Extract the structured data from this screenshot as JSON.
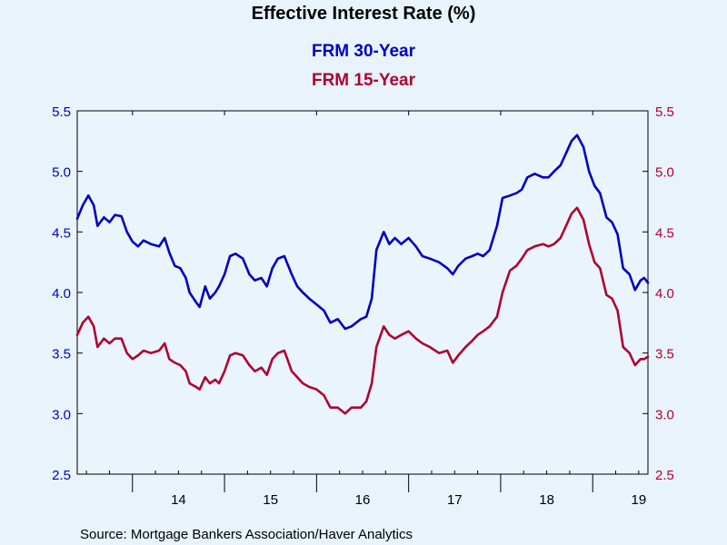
{
  "chart_data": {
    "type": "line",
    "title": "Effective Interest Rate (%)",
    "source": "Source:  Mortgage Bankers Association/Haver Analytics",
    "x_tick_labels": [
      "14",
      "15",
      "16",
      "17",
      "18",
      "19"
    ],
    "y_left": {
      "ylim": [
        2.5,
        5.5
      ],
      "ticks": [
        "2.5",
        "3.0",
        "3.5",
        "4.0",
        "4.5",
        "5.0",
        "5.5"
      ]
    },
    "y_right": {
      "ylim": [
        2.5,
        5.5
      ],
      "ticks": [
        "2.5",
        "3.0",
        "3.5",
        "4.0",
        "4.5",
        "5.0",
        "5.5"
      ]
    },
    "xlim": [
      2013.4,
      2019.6
    ],
    "grid": false,
    "legend": "top-center",
    "series": [
      {
        "name": "FRM 30-Year",
        "color": "#0000c0",
        "axis": "left",
        "points": [
          [
            2013.4,
            4.61
          ],
          [
            2013.46,
            4.72
          ],
          [
            2013.52,
            4.8
          ],
          [
            2013.58,
            4.72
          ],
          [
            2013.62,
            4.55
          ],
          [
            2013.69,
            4.62
          ],
          [
            2013.75,
            4.58
          ],
          [
            2013.81,
            4.64
          ],
          [
            2013.88,
            4.63
          ],
          [
            2013.94,
            4.5
          ],
          [
            2014.0,
            4.42
          ],
          [
            2014.06,
            4.38
          ],
          [
            2014.12,
            4.43
          ],
          [
            2014.2,
            4.4
          ],
          [
            2014.29,
            4.38
          ],
          [
            2014.35,
            4.45
          ],
          [
            2014.4,
            4.33
          ],
          [
            2014.46,
            4.22
          ],
          [
            2014.52,
            4.2
          ],
          [
            2014.58,
            4.12
          ],
          [
            2014.62,
            4.0
          ],
          [
            2014.69,
            3.92
          ],
          [
            2014.73,
            3.88
          ],
          [
            2014.79,
            4.05
          ],
          [
            2014.84,
            3.95
          ],
          [
            2014.9,
            4.0
          ],
          [
            2014.94,
            4.05
          ],
          [
            2015.0,
            4.15
          ],
          [
            2015.06,
            4.3
          ],
          [
            2015.12,
            4.32
          ],
          [
            2015.2,
            4.28
          ],
          [
            2015.27,
            4.15
          ],
          [
            2015.33,
            4.1
          ],
          [
            2015.4,
            4.12
          ],
          [
            2015.46,
            4.05
          ],
          [
            2015.52,
            4.2
          ],
          [
            2015.58,
            4.28
          ],
          [
            2015.65,
            4.3
          ],
          [
            2015.73,
            4.15
          ],
          [
            2015.79,
            4.05
          ],
          [
            2015.85,
            4.0
          ],
          [
            2015.92,
            3.95
          ],
          [
            2016.0,
            3.9
          ],
          [
            2016.08,
            3.85
          ],
          [
            2016.15,
            3.75
          ],
          [
            2016.23,
            3.78
          ],
          [
            2016.31,
            3.7
          ],
          [
            2016.38,
            3.72
          ],
          [
            2016.48,
            3.78
          ],
          [
            2016.54,
            3.8
          ],
          [
            2016.6,
            3.95
          ],
          [
            2016.65,
            4.35
          ],
          [
            2016.73,
            4.5
          ],
          [
            2016.79,
            4.4
          ],
          [
            2016.85,
            4.45
          ],
          [
            2016.92,
            4.4
          ],
          [
            2017.0,
            4.45
          ],
          [
            2017.08,
            4.38
          ],
          [
            2017.15,
            4.3
          ],
          [
            2017.23,
            4.28
          ],
          [
            2017.33,
            4.25
          ],
          [
            2017.42,
            4.2
          ],
          [
            2017.48,
            4.15
          ],
          [
            2017.54,
            4.22
          ],
          [
            2017.62,
            4.28
          ],
          [
            2017.69,
            4.3
          ],
          [
            2017.75,
            4.32
          ],
          [
            2017.81,
            4.3
          ],
          [
            2017.88,
            4.35
          ],
          [
            2017.96,
            4.55
          ],
          [
            2018.02,
            4.78
          ],
          [
            2018.1,
            4.8
          ],
          [
            2018.17,
            4.82
          ],
          [
            2018.23,
            4.85
          ],
          [
            2018.29,
            4.95
          ],
          [
            2018.37,
            4.98
          ],
          [
            2018.46,
            4.95
          ],
          [
            2018.52,
            4.95
          ],
          [
            2018.58,
            5.0
          ],
          [
            2018.65,
            5.05
          ],
          [
            2018.71,
            5.15
          ],
          [
            2018.77,
            5.25
          ],
          [
            2018.83,
            5.3
          ],
          [
            2018.9,
            5.2
          ],
          [
            2018.96,
            5.0
          ],
          [
            2019.02,
            4.88
          ],
          [
            2019.08,
            4.82
          ],
          [
            2019.15,
            4.62
          ],
          [
            2019.21,
            4.58
          ],
          [
            2019.27,
            4.48
          ],
          [
            2019.33,
            4.2
          ],
          [
            2019.4,
            4.15
          ],
          [
            2019.46,
            4.02
          ],
          [
            2019.52,
            4.1
          ],
          [
            2019.56,
            4.12
          ],
          [
            2019.6,
            4.08
          ]
        ]
      },
      {
        "name": "FRM 15-Year",
        "color": "#b00030",
        "axis": "right",
        "points": [
          [
            2013.4,
            3.65
          ],
          [
            2013.46,
            3.75
          ],
          [
            2013.52,
            3.8
          ],
          [
            2013.58,
            3.72
          ],
          [
            2013.62,
            3.55
          ],
          [
            2013.69,
            3.62
          ],
          [
            2013.75,
            3.58
          ],
          [
            2013.81,
            3.62
          ],
          [
            2013.88,
            3.62
          ],
          [
            2013.94,
            3.5
          ],
          [
            2014.0,
            3.45
          ],
          [
            2014.06,
            3.48
          ],
          [
            2014.12,
            3.52
          ],
          [
            2014.2,
            3.5
          ],
          [
            2014.29,
            3.52
          ],
          [
            2014.35,
            3.58
          ],
          [
            2014.4,
            3.45
          ],
          [
            2014.46,
            3.42
          ],
          [
            2014.52,
            3.4
          ],
          [
            2014.58,
            3.35
          ],
          [
            2014.62,
            3.25
          ],
          [
            2014.69,
            3.22
          ],
          [
            2014.73,
            3.2
          ],
          [
            2014.79,
            3.3
          ],
          [
            2014.84,
            3.25
          ],
          [
            2014.9,
            3.28
          ],
          [
            2014.94,
            3.25
          ],
          [
            2015.0,
            3.35
          ],
          [
            2015.06,
            3.48
          ],
          [
            2015.12,
            3.5
          ],
          [
            2015.2,
            3.48
          ],
          [
            2015.27,
            3.4
          ],
          [
            2015.33,
            3.35
          ],
          [
            2015.4,
            3.38
          ],
          [
            2015.46,
            3.32
          ],
          [
            2015.52,
            3.45
          ],
          [
            2015.58,
            3.5
          ],
          [
            2015.65,
            3.52
          ],
          [
            2015.73,
            3.35
          ],
          [
            2015.79,
            3.3
          ],
          [
            2015.85,
            3.25
          ],
          [
            2015.92,
            3.22
          ],
          [
            2016.0,
            3.2
          ],
          [
            2016.08,
            3.15
          ],
          [
            2016.15,
            3.05
          ],
          [
            2016.23,
            3.05
          ],
          [
            2016.31,
            3.0
          ],
          [
            2016.38,
            3.05
          ],
          [
            2016.48,
            3.05
          ],
          [
            2016.54,
            3.1
          ],
          [
            2016.6,
            3.25
          ],
          [
            2016.65,
            3.55
          ],
          [
            2016.73,
            3.72
          ],
          [
            2016.79,
            3.65
          ],
          [
            2016.85,
            3.62
          ],
          [
            2016.92,
            3.65
          ],
          [
            2017.0,
            3.68
          ],
          [
            2017.08,
            3.62
          ],
          [
            2017.15,
            3.58
          ],
          [
            2017.23,
            3.55
          ],
          [
            2017.33,
            3.5
          ],
          [
            2017.42,
            3.52
          ],
          [
            2017.48,
            3.42
          ],
          [
            2017.54,
            3.48
          ],
          [
            2017.62,
            3.55
          ],
          [
            2017.69,
            3.6
          ],
          [
            2017.75,
            3.65
          ],
          [
            2017.81,
            3.68
          ],
          [
            2017.88,
            3.72
          ],
          [
            2017.96,
            3.8
          ],
          [
            2018.02,
            4.0
          ],
          [
            2018.1,
            4.18
          ],
          [
            2018.17,
            4.22
          ],
          [
            2018.23,
            4.28
          ],
          [
            2018.29,
            4.35
          ],
          [
            2018.37,
            4.38
          ],
          [
            2018.46,
            4.4
          ],
          [
            2018.52,
            4.38
          ],
          [
            2018.58,
            4.4
          ],
          [
            2018.65,
            4.45
          ],
          [
            2018.71,
            4.55
          ],
          [
            2018.77,
            4.65
          ],
          [
            2018.83,
            4.7
          ],
          [
            2018.9,
            4.6
          ],
          [
            2018.96,
            4.4
          ],
          [
            2019.02,
            4.25
          ],
          [
            2019.08,
            4.2
          ],
          [
            2019.15,
            3.98
          ],
          [
            2019.21,
            3.95
          ],
          [
            2019.27,
            3.85
          ],
          [
            2019.33,
            3.55
          ],
          [
            2019.4,
            3.5
          ],
          [
            2019.46,
            3.4
          ],
          [
            2019.52,
            3.45
          ],
          [
            2019.56,
            3.45
          ],
          [
            2019.6,
            3.47
          ]
        ]
      }
    ]
  }
}
